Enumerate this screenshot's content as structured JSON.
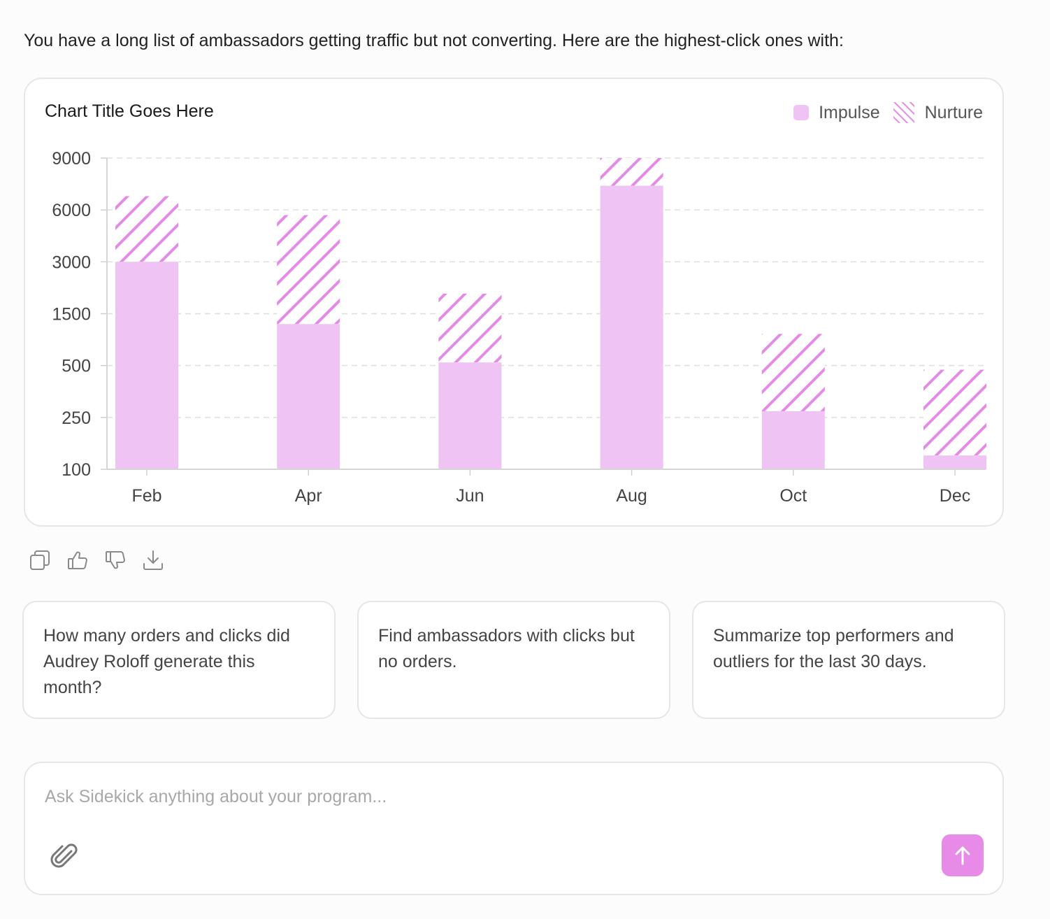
{
  "intro_text": "You have a long list of ambassadors getting traffic but not converting. Here are the highest-click ones with:",
  "chart_data": {
    "type": "bar",
    "stacked": true,
    "title": "Chart Title Goes Here",
    "categories": [
      "Feb",
      "Apr",
      "Jun",
      "Aug",
      "Oct",
      "Dec"
    ],
    "y_ticks": [
      "9000",
      "6000",
      "3000",
      "1500",
      "500",
      "250",
      "100"
    ],
    "series": [
      {
        "name": "Impulse",
        "color": "#efc3f3",
        "pattern": "solid",
        "values": [
          3000,
          1300,
          560,
          7400,
          280,
          140
        ]
      },
      {
        "name": "Nurture",
        "color": "#e48be8",
        "pattern": "hatch",
        "values": [
          3800,
          4400,
          1520,
          1600,
          830,
          340
        ]
      }
    ],
    "grid": true,
    "legend_position": "top-right"
  },
  "actions": {
    "copy": "copy-icon",
    "like": "thumbs-up-icon",
    "dislike": "thumbs-down-icon",
    "download": "download-icon"
  },
  "suggestions": [
    "How many orders and clicks did Audrey Roloff generate this month?",
    "Find ambassadors with clicks but no orders.",
    "Summarize top performers and outliers for the last 30 days."
  ],
  "composer": {
    "placeholder": "Ask Sidekick anything about your program...",
    "accent_color": "#e88ae8"
  }
}
